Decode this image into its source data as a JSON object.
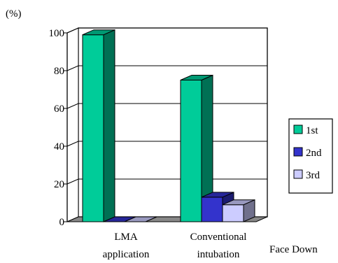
{
  "chart_data": {
    "type": "bar",
    "unit_label": "(%)",
    "categories": [
      [
        "LMA",
        "application"
      ],
      [
        "Conventional",
        "intubation"
      ]
    ],
    "series": [
      {
        "name": "1st",
        "values": [
          99,
          75
        ],
        "color": "#00cc99"
      },
      {
        "name": "2nd",
        "values": [
          0,
          13
        ],
        "color": "#3333cc"
      },
      {
        "name": "3rd",
        "values": [
          0,
          9
        ],
        "color": "#ccccff"
      }
    ],
    "yticks": [
      0,
      20,
      40,
      60,
      80,
      100
    ],
    "ylim": [
      0,
      100
    ],
    "legend_position": "right",
    "annotation": "Face Down",
    "grid": true
  }
}
